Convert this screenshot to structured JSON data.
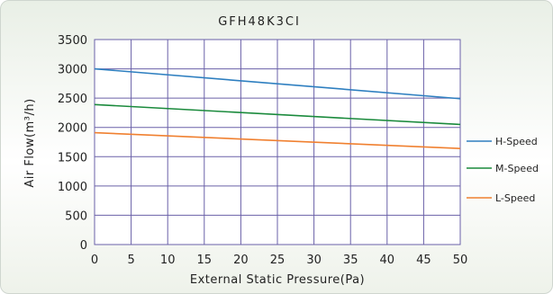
{
  "chart_data": {
    "type": "line",
    "title": "GFH48K3CI",
    "xlabel": "External Static Pressure(Pa)",
    "ylabel": "Air Flow(m³/h)",
    "xlim": [
      0,
      50
    ],
    "ylim": [
      0,
      3500
    ],
    "xticks": [
      "0",
      "5",
      "10",
      "15",
      "20",
      "25",
      "30",
      "35",
      "40",
      "45",
      "50"
    ],
    "yticks": [
      "0",
      "500",
      "1000",
      "1500",
      "2000",
      "2500",
      "3000",
      "3500"
    ],
    "grid": true,
    "legend_position": "right",
    "series": [
      {
        "name": "H-Speed",
        "color": "#2e7fc0",
        "x": [
          0,
          50
        ],
        "y": [
          3000,
          2490
        ]
      },
      {
        "name": "M-Speed",
        "color": "#1a8a3c",
        "x": [
          0,
          50
        ],
        "y": [
          2390,
          2050
        ]
      },
      {
        "name": "L-Speed",
        "color": "#f08030",
        "x": [
          0,
          50
        ],
        "y": [
          1910,
          1640
        ]
      }
    ]
  }
}
